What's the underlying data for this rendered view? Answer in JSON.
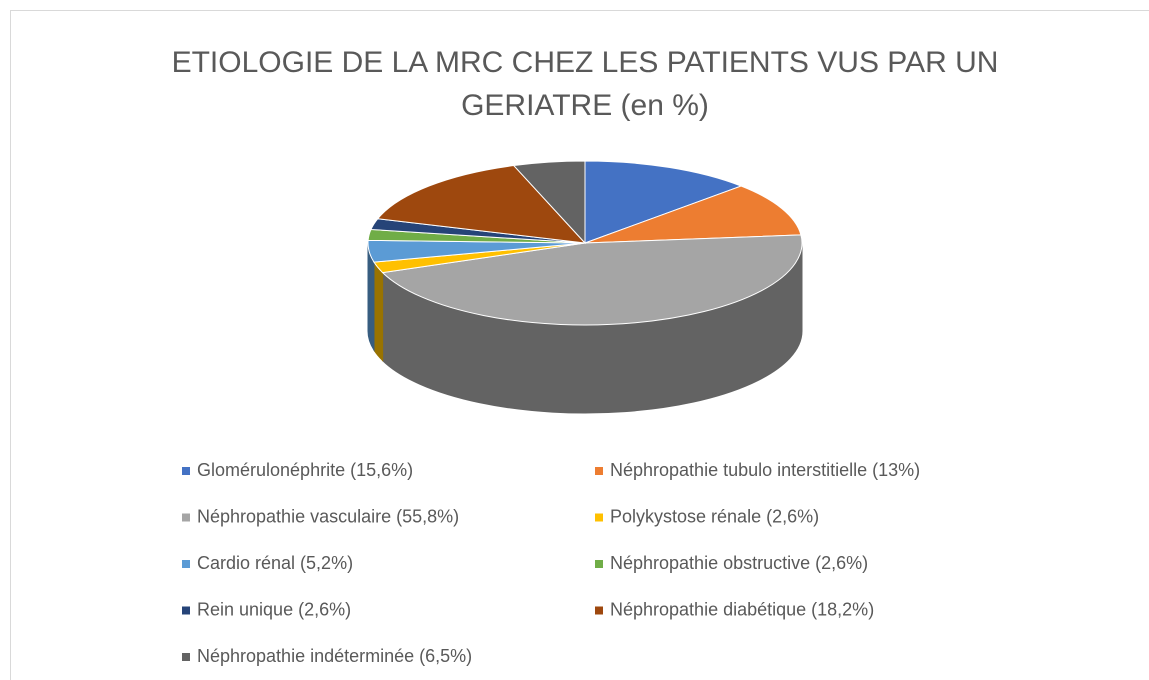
{
  "chart_data": {
    "type": "pie",
    "title": [
      "ETIOLOGIE DE LA MRC CHEZ LES PATIENTS VUS PAR UN",
      "GERIATRE (en %)"
    ],
    "categories": [
      "Glomérulonéphrite (15,6%)",
      "Néphropathie tubulo interstitielle (13%)",
      "Néphropathie vasculaire (55,8%)",
      "Polykystose rénale (2,6%)",
      "Cardio rénal (5,2%)",
      "Néphropathie obstructive (2,6%)",
      "Rein unique (2,6%)",
      "Néphropathie diabétique (18,2%)",
      "Néphropathie indéterminée (6,5%)"
    ],
    "values": [
      15.6,
      13,
      55.8,
      2.6,
      5.2,
      2.6,
      2.6,
      18.2,
      6.5
    ],
    "colors": [
      "#4472c4",
      "#ed7d31",
      "#a5a5a5",
      "#ffc000",
      "#5b9bd5",
      "#70ad47",
      "#264478",
      "#9e480e",
      "#636363"
    ],
    "legend": "bottom"
  }
}
